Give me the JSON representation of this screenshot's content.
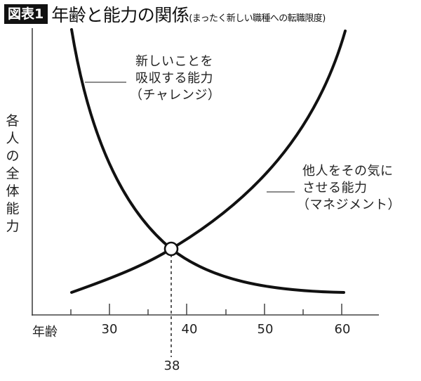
{
  "header": {
    "badge": "図表1",
    "title": "年齢と能力の関係",
    "subtitle": "(まったく新しい職種への転職限度)"
  },
  "axes": {
    "ylabel": "各人の全体能力",
    "xlabel": "年齢",
    "x_ticks_major": [
      "30",
      "40",
      "50",
      "60"
    ],
    "x_ticks_minor": [
      25,
      35,
      45,
      55
    ],
    "marker_label": "38"
  },
  "annotations": {
    "challenge": [
      "新しいことを",
      "吸収する能力",
      "（チャレンジ）"
    ],
    "management": [
      "他人をその気に",
      "させる能力",
      "（マネジメント）"
    ]
  },
  "colors": {
    "curve": "#111111",
    "axis": "#444444",
    "leader": "#666666",
    "badge_bg": "#111111",
    "badge_text": "#ffffff"
  },
  "chart_data": {
    "type": "line",
    "title": "年齢と能力の関係(まったく新しい職種への転職限度)",
    "xlabel": "年齢",
    "ylabel": "各人の全体能力",
    "xlim": [
      20,
      65
    ],
    "ylim": [
      0,
      100
    ],
    "x_ticks": [
      30,
      40,
      50,
      60
    ],
    "grid": false,
    "legend_position": "inline annotations",
    "x": [
      25,
      30,
      35,
      38,
      40,
      45,
      50,
      55,
      60
    ],
    "series": [
      {
        "name": "新しいことを吸収する能力（チャレンジ）",
        "values": [
          99,
          60,
          35,
          23,
          19,
          12,
          8,
          6,
          5
        ],
        "trend": "decreasing"
      },
      {
        "name": "他人をその気にさせる能力（マネジメント）",
        "values": [
          8,
          13,
          19,
          23,
          26,
          38,
          54,
          74,
          99
        ],
        "trend": "increasing"
      }
    ],
    "annotations_points": [
      {
        "x": 38,
        "label": "38",
        "note": "crossover point (open circle, dashed guide to x-axis)"
      }
    ],
    "y_ticks": []
  }
}
